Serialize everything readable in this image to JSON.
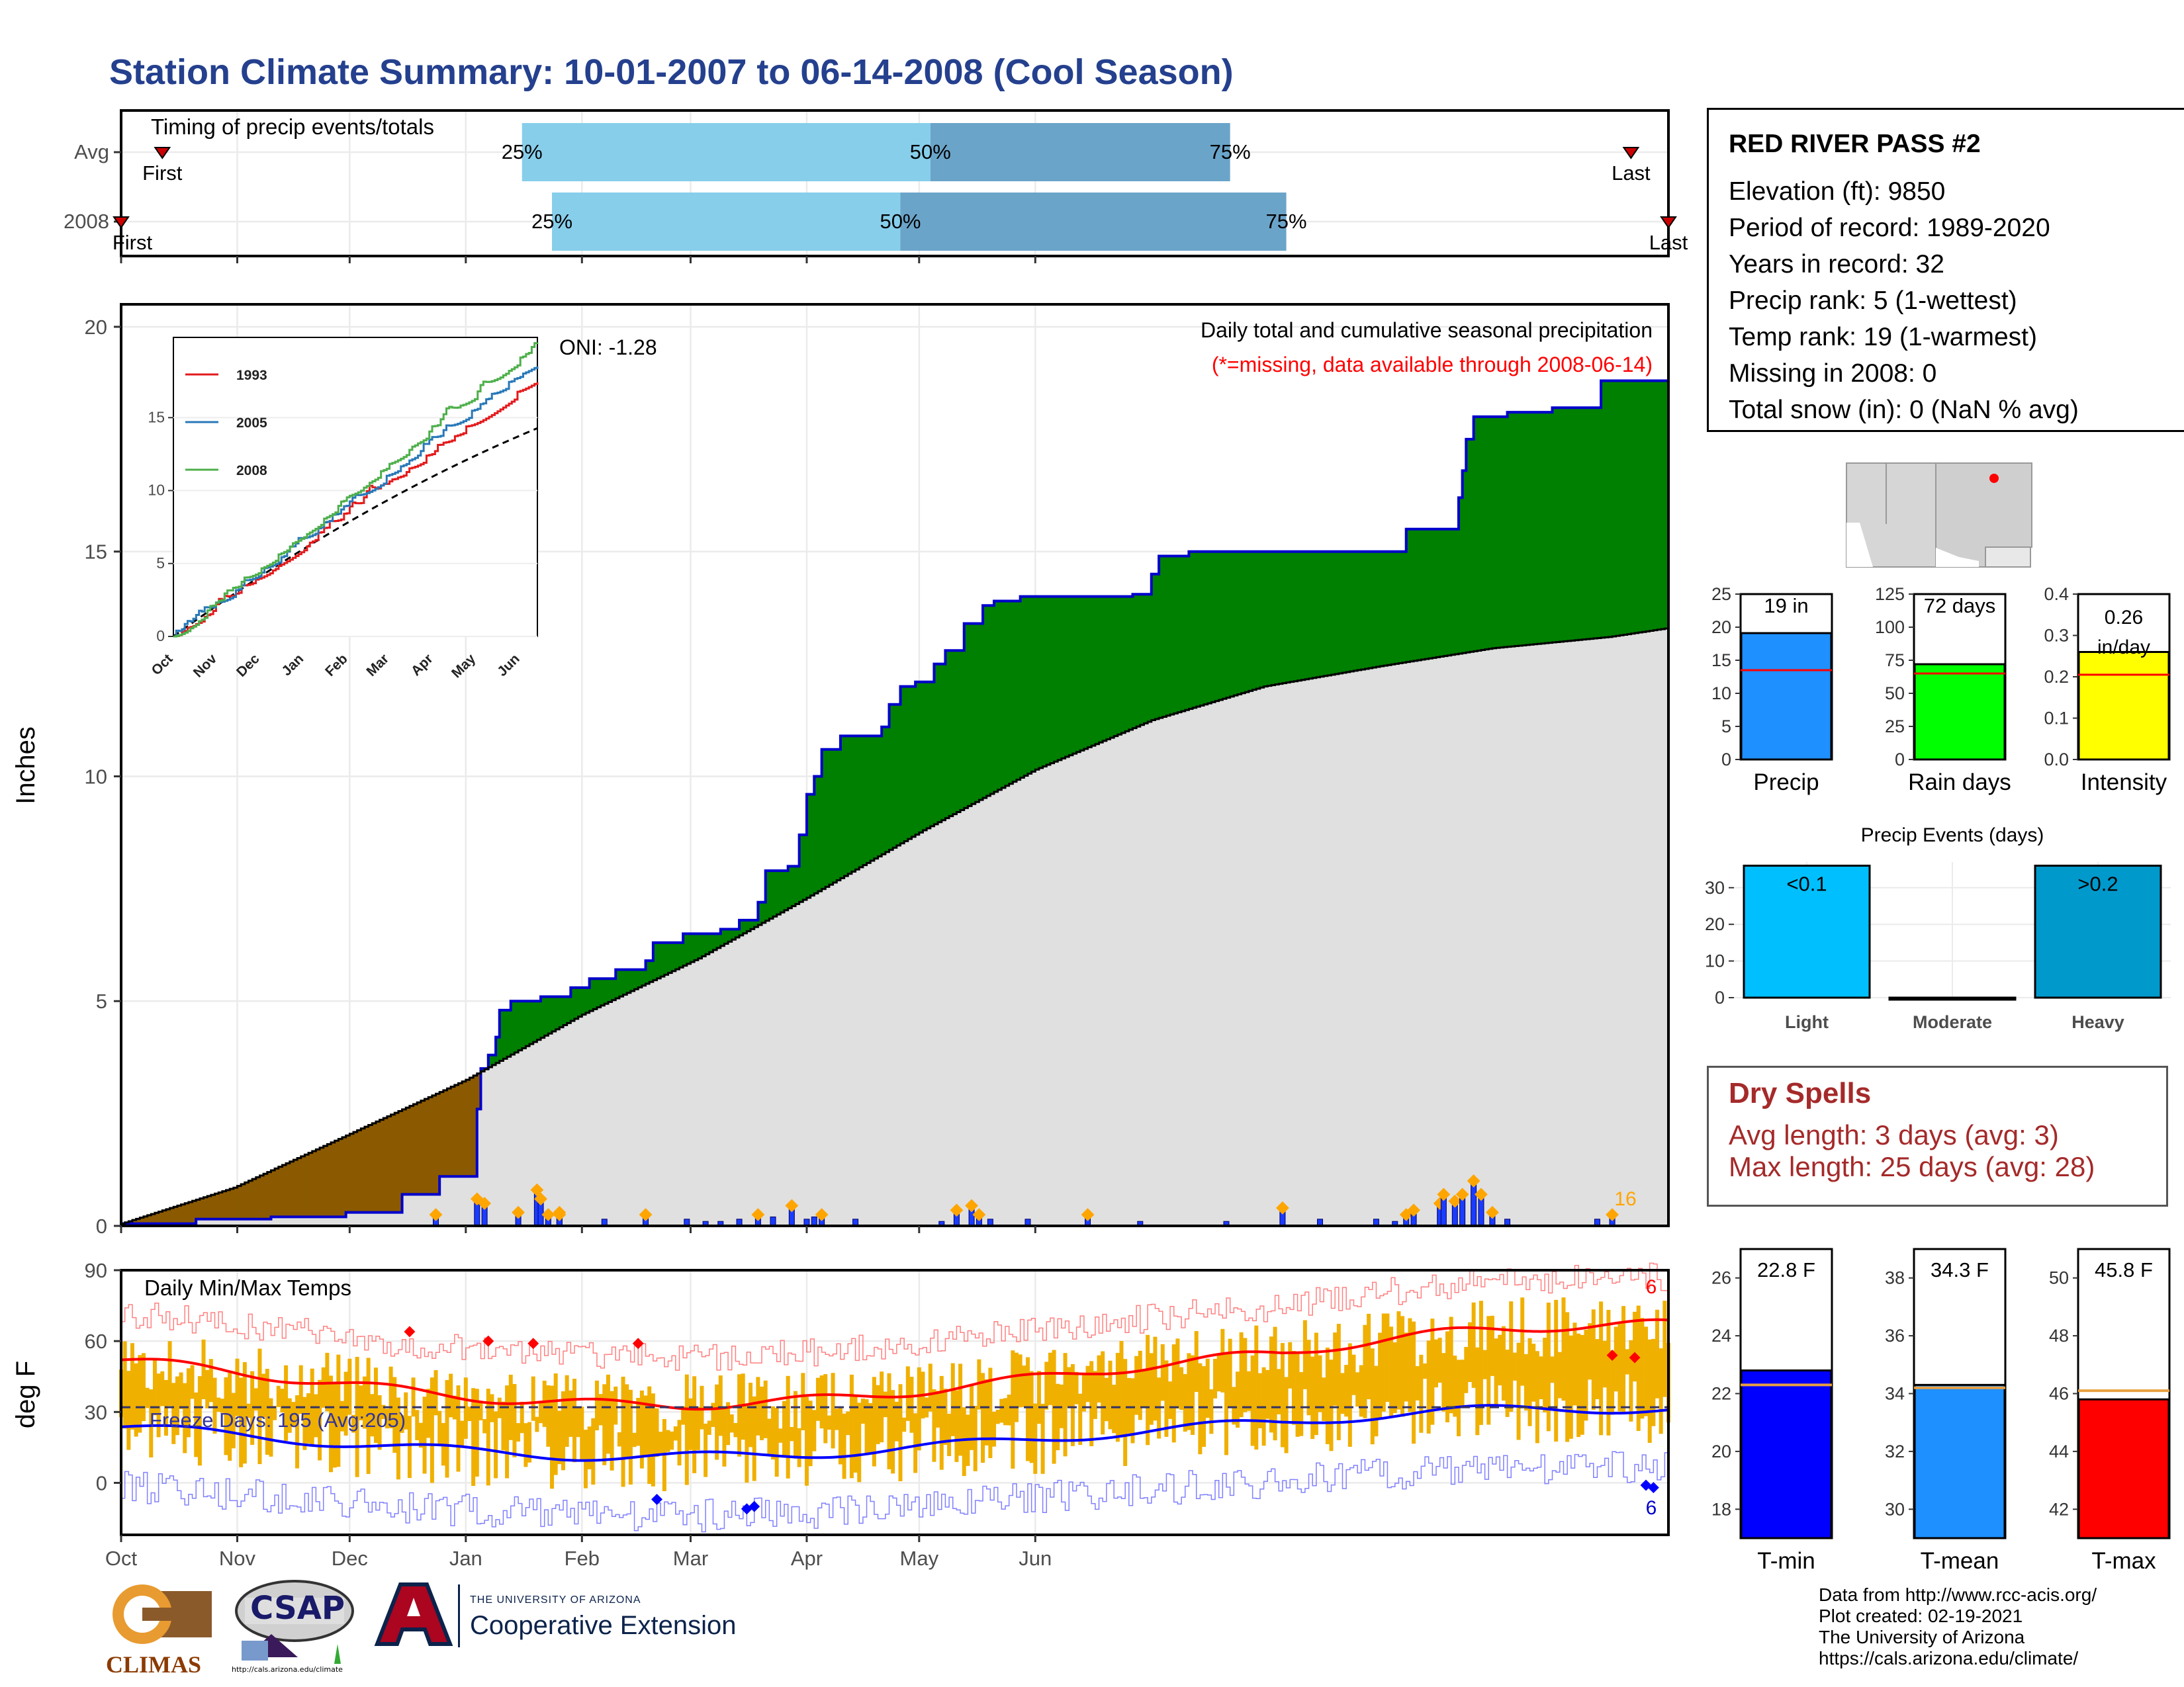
{
  "title": "Station Climate Summary: 10-01-2007 to 06-14-2008 (Cool Season)",
  "timing": {
    "label": "Timing of precip events/totals",
    "rows": [
      {
        "name": "Avg",
        "first": 11,
        "q25": 107,
        "q50": 216,
        "q75": 296,
        "last": 403,
        "first_label": "First",
        "last_label": "Last",
        "q25_label": "25%",
        "q50_label": "50%",
        "q75_label": "75%"
      },
      {
        "name": "2008",
        "first": 0,
        "q25": 115,
        "q50": 208,
        "q75": 311,
        "last": 413,
        "first_label": "First",
        "last_label": "Last",
        "q25_label": "25%",
        "q50_label": "50%",
        "q75_label": "75%"
      }
    ],
    "colors": {
      "early": "#87ceeb",
      "late": "#6ba4c9",
      "marker": "#cc0000"
    }
  },
  "months": [
    "Oct",
    "Nov",
    "Dec",
    "Jan",
    "Feb",
    "Mar",
    "Apr",
    "May",
    "Jun"
  ],
  "precip_panel": {
    "ylabel": "Inches",
    "oni": "ONI: -1.28",
    "subtitle": "Daily total and cumulative seasonal precipitation",
    "missing_note": "(*=missing, data available through 2008-06-14)",
    "count_label": "16",
    "colors": {
      "above": "#008000",
      "below": "#8b5a00",
      "avg_fill": "#e0e0e0",
      "obs_line": "#0000cc",
      "bar": "#1a3cff",
      "dot": "#ffa500",
      "missing": "#ff0000"
    },
    "inset": {
      "legend": [
        "1993",
        "2005",
        "2008"
      ],
      "colors": [
        "#e31a1c",
        "#2878b8",
        "#4daf4a"
      ],
      "y_ticks": [
        "0",
        "5",
        "10",
        "15"
      ]
    }
  },
  "chart_data": {
    "type": "area",
    "title": "Daily total and cumulative seasonal precipitation",
    "ylabel": "Inches",
    "ylim": [
      0,
      20.5
    ],
    "x_dates": [
      "2007-10-01",
      "2007-11-01",
      "2007-12-01",
      "2008-01-01",
      "2008-02-01",
      "2008-03-01",
      "2008-04-01",
      "2008-05-01",
      "2008-06-01",
      "2008-06-14"
    ],
    "series": [
      {
        "name": "Observed cumulative (2008)",
        "points": [
          [
            0,
            0.05
          ],
          [
            20,
            0.15
          ],
          [
            40,
            0.2
          ],
          [
            60,
            0.3
          ],
          [
            75,
            0.7
          ],
          [
            85,
            1.1
          ],
          [
            93,
            1.1
          ],
          [
            95,
            2.6
          ],
          [
            96,
            3.5
          ],
          [
            98,
            3.8
          ],
          [
            100,
            4.2
          ],
          [
            101,
            4.8
          ],
          [
            104,
            5.0
          ],
          [
            112,
            5.1
          ],
          [
            120,
            5.3
          ],
          [
            125,
            5.5
          ],
          [
            132,
            5.7
          ],
          [
            140,
            5.9
          ],
          [
            142,
            6.3
          ],
          [
            150,
            6.5
          ],
          [
            160,
            6.6
          ],
          [
            165,
            6.8
          ],
          [
            170,
            7.2
          ],
          [
            172,
            7.9
          ],
          [
            178,
            8.0
          ],
          [
            181,
            8.7
          ],
          [
            183,
            9.6
          ],
          [
            185,
            10.0
          ],
          [
            187,
            10.6
          ],
          [
            192,
            10.9
          ],
          [
            203,
            11.1
          ],
          [
            205,
            11.6
          ],
          [
            208,
            12.0
          ],
          [
            212,
            12.1
          ],
          [
            217,
            12.5
          ],
          [
            220,
            12.8
          ],
          [
            225,
            13.4
          ],
          [
            230,
            13.8
          ],
          [
            233,
            13.9
          ],
          [
            240,
            14.0
          ],
          [
            258,
            14.0
          ],
          [
            270,
            14.05
          ],
          [
            275,
            14.5
          ],
          [
            277,
            14.9
          ],
          [
            285,
            15.0
          ],
          [
            330,
            15.0
          ],
          [
            340,
            15.0
          ],
          [
            343,
            15.5
          ],
          [
            355,
            15.5
          ],
          [
            357,
            16.2
          ],
          [
            358,
            16.8
          ],
          [
            359,
            17.5
          ],
          [
            361,
            18.0
          ],
          [
            370,
            18.1
          ],
          [
            382,
            18.2
          ],
          [
            392,
            18.2
          ],
          [
            395,
            18.8
          ],
          [
            407,
            18.8
          ],
          [
            413,
            19.0
          ]
        ]
      },
      {
        "name": "Average cumulative",
        "points": [
          [
            0,
            0.05
          ],
          [
            30,
            0.85
          ],
          [
            61,
            2.05
          ],
          [
            92,
            3.25
          ],
          [
            123,
            4.7
          ],
          [
            154,
            5.95
          ],
          [
            183,
            7.3
          ],
          [
            214,
            8.8
          ],
          [
            244,
            10.15
          ],
          [
            275,
            11.25
          ],
          [
            305,
            12.0
          ],
          [
            336,
            12.45
          ],
          [
            366,
            12.85
          ],
          [
            397,
            13.1
          ],
          [
            413,
            13.3
          ]
        ]
      }
    ],
    "daily_bars": [
      [
        84,
        0.25
      ],
      [
        95,
        0.6
      ],
      [
        97,
        0.5
      ],
      [
        106,
        0.3
      ],
      [
        111,
        0.8
      ],
      [
        112,
        0.6
      ],
      [
        114,
        0.25
      ],
      [
        117,
        0.3
      ],
      [
        117,
        0.25
      ],
      [
        129,
        0.15
      ],
      [
        140,
        0.25
      ],
      [
        151,
        0.15
      ],
      [
        156,
        0.1
      ],
      [
        160,
        0.1
      ],
      [
        165,
        0.15
      ],
      [
        170,
        0.25
      ],
      [
        174,
        0.2
      ],
      [
        179,
        0.45
      ],
      [
        183,
        0.15
      ],
      [
        185,
        0.2
      ],
      [
        187,
        0.25
      ],
      [
        196,
        0.15
      ],
      [
        219,
        0.1
      ],
      [
        223,
        0.35
      ],
      [
        227,
        0.45
      ],
      [
        229,
        0.25
      ],
      [
        232,
        0.15
      ],
      [
        242,
        0.15
      ],
      [
        258,
        0.25
      ],
      [
        272,
        0.1
      ],
      [
        295,
        0.1
      ],
      [
        310,
        0.4
      ],
      [
        320,
        0.15
      ],
      [
        335,
        0.15
      ],
      [
        340,
        0.1
      ],
      [
        343,
        0.25
      ],
      [
        345,
        0.35
      ],
      [
        352,
        0.5
      ],
      [
        353,
        0.7
      ],
      [
        356,
        0.55
      ],
      [
        358,
        0.7
      ],
      [
        361,
        1.0
      ],
      [
        363,
        0.7
      ],
      [
        366,
        0.3
      ],
      [
        370,
        0.15
      ],
      [
        394,
        0.15
      ],
      [
        398,
        0.25
      ]
    ]
  },
  "temp_panel": {
    "ylabel": "deg F",
    "label": "Daily Min/Max Temps",
    "freeze_label": "Freeze Days: 195 (Avg:205)",
    "top_count": "6",
    "bottom_count": "6",
    "y_ticks": [
      "0",
      "30",
      "60",
      "90"
    ],
    "colors": {
      "bar": "#f0b000",
      "max_avg": "#ff0000",
      "min_avg": "#0000ff",
      "max_rec": "#ff8080",
      "min_rec": "#8080ff",
      "freeze": "#333366"
    }
  },
  "summary_bars": [
    {
      "label": "Precip",
      "value_label": "19 in",
      "value": 19.1,
      "avg": 13.5,
      "ymax": 25,
      "ticks": [
        "0",
        "5",
        "10",
        "15",
        "20",
        "25"
      ],
      "color": "#1e90ff"
    },
    {
      "label": "Rain days",
      "value_label": "72 days",
      "value": 72,
      "avg": 65,
      "ymax": 125,
      "ticks": [
        "0",
        "25",
        "50",
        "75",
        "100",
        "125"
      ],
      "color": "#00ff00"
    },
    {
      "label": "Intensity",
      "value_label": "0.26 in/day",
      "value": 0.26,
      "avg": 0.205,
      "ymax": 0.4,
      "ticks": [
        "0.0",
        "0.1",
        "0.2",
        "0.3",
        "0.4"
      ],
      "color": "#ffff00"
    }
  ],
  "events": {
    "title": "Precip Events (days)",
    "categories": [
      "Light",
      "Moderate",
      "Heavy"
    ],
    "values": [
      36,
      0,
      36
    ],
    "bar_labels": [
      "<0.1",
      "",
      ">0.2"
    ],
    "ticks": [
      "0",
      "10",
      "20",
      "30"
    ],
    "colors": [
      "#00bfff",
      "#000000",
      "#0099cc"
    ]
  },
  "temp_bars": [
    {
      "label": "T-min",
      "value_label": "22.8 F",
      "value": 22.8,
      "avg": 22.3,
      "ymin": 17,
      "ymax": 27,
      "ticks": [
        "18",
        "20",
        "22",
        "24",
        "26"
      ],
      "color": "#0000ff"
    },
    {
      "label": "T-mean",
      "value_label": "34.3 F",
      "value": 34.3,
      "avg": 34.2,
      "ymin": 29,
      "ymax": 39,
      "ticks": [
        "30",
        "32",
        "34",
        "36",
        "38"
      ],
      "color": "#1e90ff"
    },
    {
      "label": "T-max",
      "value_label": "45.8 F",
      "value": 45.8,
      "avg": 46.1,
      "ymin": 41,
      "ymax": 51,
      "ticks": [
        "42",
        "44",
        "46",
        "48",
        "50"
      ],
      "color": "#ff0000"
    }
  ],
  "station": {
    "name": "RED RIVER PASS #2",
    "lines": [
      "Elevation (ft): 9850",
      "Period of record: 1989-2020",
      "Years in record: 32",
      "Precip rank: 5 (1-wettest)",
      "Temp rank: 19 (1-warmest)",
      "Missing in 2008: 0",
      "Total snow (in): 0 (NaN % avg)"
    ]
  },
  "dry_spells": {
    "title": "Dry Spells",
    "avg": "Avg length: 3 days (avg: 3)",
    "max": "Max length: 25 days (avg: 28)"
  },
  "footer": [
    "Data from http://www.rcc-acis.org/",
    "Plot created: 02-19-2021",
    "The University of Arizona",
    "https://cals.arizona.edu/climate/"
  ],
  "logos": {
    "climas": "CLIMAS",
    "csap": "CSAP",
    "csap_url": "http://cals.arizona.edu/climate",
    "ua_top": "THE UNIVERSITY OF ARIZONA",
    "ua_bottom": "Cooperative Extension"
  }
}
